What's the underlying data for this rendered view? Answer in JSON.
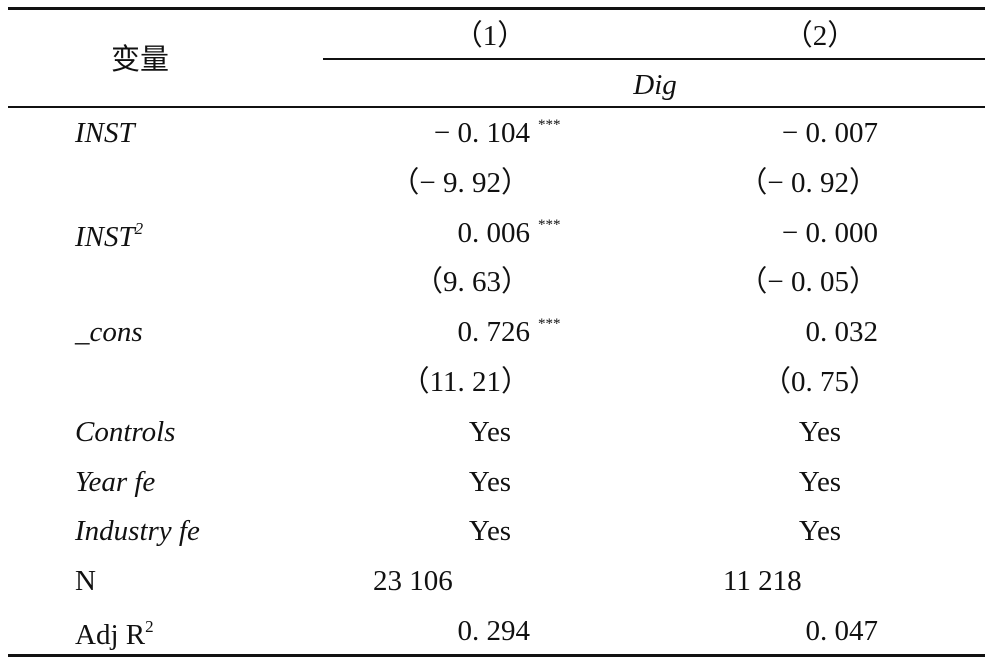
{
  "table": {
    "header": {
      "variable": "变量",
      "columns": [
        "（1）",
        "（2）"
      ],
      "dependent": "Dig"
    },
    "rows": [
      {
        "label": "INST",
        "cells": [
          {
            "value": "− 0. 104",
            "stars": "***"
          },
          {
            "value": "− 0. 007"
          }
        ]
      },
      {
        "cells": [
          {
            "value": "（− 9. 92）"
          },
          {
            "value": "（− 0. 92）"
          }
        ]
      },
      {
        "label": "INST",
        "label_sup": "2",
        "cells": [
          {
            "value": "0. 006",
            "stars": "***"
          },
          {
            "value": "− 0. 000"
          }
        ]
      },
      {
        "cells": [
          {
            "value": "（9. 63）"
          },
          {
            "value": "（− 0. 05）"
          }
        ]
      },
      {
        "label": "_cons",
        "cells": [
          {
            "value": "0. 726",
            "stars": "***"
          },
          {
            "value": "0. 032"
          }
        ]
      },
      {
        "cells": [
          {
            "value": "（11. 21）"
          },
          {
            "value": "（0. 75）"
          }
        ]
      },
      {
        "label": "Controls",
        "cells": [
          {
            "value": "Yes"
          },
          {
            "value": "Yes"
          }
        ]
      },
      {
        "label": "Year fe",
        "cells": [
          {
            "value": "Yes"
          },
          {
            "value": "Yes"
          }
        ]
      },
      {
        "label": "Industry fe",
        "cells": [
          {
            "value": "Yes"
          },
          {
            "value": "Yes"
          }
        ]
      },
      {
        "label": "N",
        "cells": [
          {
            "value": "23 106"
          },
          {
            "value": "11 218"
          }
        ]
      },
      {
        "label": "Adj R",
        "label_sup": "2",
        "cells": [
          {
            "value": "0. 294"
          },
          {
            "value": "0. 047"
          }
        ]
      }
    ]
  }
}
